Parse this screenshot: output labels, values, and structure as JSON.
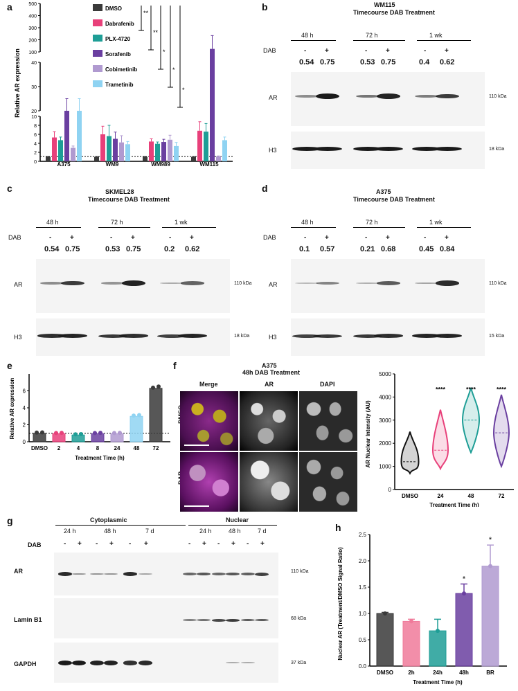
{
  "labels": {
    "a": "a",
    "b": "b",
    "c": "c",
    "d": "d",
    "e": "e",
    "f": "f",
    "g": "g",
    "h": "h"
  },
  "common": {
    "dab": "DAB",
    "minus": "-",
    "plus": "+",
    "ar": "AR",
    "h3": "H3",
    "kda110": "110 kDa",
    "kda18": "18 kDa",
    "kda15": "15 kDa",
    "kda68": "68 kDa",
    "kda37": "37 kDa",
    "t48": "48 h",
    "t72": "72 h",
    "t1wk": "1 wk",
    "t24": "24 h",
    "t7d": "7 d"
  },
  "panel_a": {
    "ylabel": "Relative AR expression",
    "yticks_top": [
      "500",
      "400",
      "300",
      "200",
      "100"
    ],
    "yticks_mid": [
      "40",
      "30",
      "20"
    ],
    "yticks_low": [
      "10",
      "8",
      "6",
      "4",
      "2",
      "0"
    ],
    "legend": [
      "DMSO",
      "Dabrafenib",
      "PLX-4720",
      "Sorafenib",
      "Cobimetinib",
      "Trametinib"
    ],
    "sig": [
      "**",
      "**",
      "*",
      "*",
      "*"
    ]
  },
  "panel_b": {
    "title1": "WM115",
    "title2": "Timecourse DAB Treatment",
    "ratios": [
      "0.54",
      "0.75",
      "0.53",
      "0.75",
      "0.4",
      "0.62"
    ]
  },
  "panel_c": {
    "title1": "SKMEL28",
    "title2": "Timecourse DAB Treatment",
    "ratios": [
      "0.54",
      "0.75",
      "0.53",
      "0.75",
      "0.2",
      "0.62"
    ]
  },
  "panel_d": {
    "title1": "A375",
    "title2": "Timecourse DAB Treatment",
    "ratios": [
      "0.1",
      "0.57",
      "0.21",
      "0.68",
      "0.45",
      "0.84"
    ]
  },
  "panel_f": {
    "title1": "A375",
    "title2": "48h DAB Treatment",
    "cols": [
      "Merge",
      "AR",
      "DAPI"
    ],
    "rows": [
      "DMSO",
      "DAB"
    ],
    "stars": [
      "****",
      "****",
      "****"
    ]
  },
  "panel_g": {
    "cyto": "Cytoplasmic",
    "nuc": "Nuclear",
    "lamin": "Lamin B1",
    "gapdh": "GAPDH"
  },
  "chart_data": [
    {
      "type": "bar",
      "id": "a",
      "ylabel": "Relative AR expression",
      "categories": [
        "A375",
        "WM9",
        "WM989",
        "WM115"
      ],
      "series": [
        {
          "name": "DMSO",
          "color": "#3a3a3a",
          "values": [
            1,
            1,
            1,
            1
          ],
          "err": [
            0.1,
            0.1,
            0.1,
            0.1
          ]
        },
        {
          "name": "Dabrafenib",
          "color": "#e8407a",
          "values": [
            5.3,
            6,
            4.4,
            6.8
          ],
          "err": [
            1.3,
            1.8,
            0.6,
            2
          ]
        },
        {
          "name": "PLX-4720",
          "color": "#1e9e96",
          "values": [
            4.7,
            5.6,
            3.9,
            6.6
          ],
          "err": [
            0.7,
            2.4,
            0.4,
            1.8
          ]
        },
        {
          "name": "Sorafenib",
          "color": "#6a3fa0",
          "values": [
            20,
            5,
            4.3,
            125
          ],
          "err": [
            5,
            1.5,
            0.6,
            110
          ]
        },
        {
          "name": "Cobimetinib",
          "color": "#b09ad0",
          "values": [
            3,
            4.2,
            4.8,
            1.1
          ],
          "err": [
            0.4,
            1.5,
            1,
            0.1
          ]
        },
        {
          "name": "Trametinib",
          "color": "#8fd3f2",
          "values": [
            20,
            3.8,
            3.4,
            4.7
          ],
          "err": [
            5,
            0.6,
            0.8,
            0.7
          ]
        }
      ]
    },
    {
      "type": "bar",
      "id": "e",
      "ylabel": "Relative AR expression",
      "xlabel": "Treatment Time (h)",
      "categories": [
        "DMSO",
        "2",
        "4",
        "8",
        "24",
        "48",
        "72"
      ],
      "values": [
        1,
        0.95,
        0.8,
        0.95,
        0.95,
        3,
        6.3
      ],
      "colors": [
        "#3a3a3a",
        "#e8407a",
        "#1e9e96",
        "#6a3fa0",
        "#b09ad0",
        "#8fd3f2",
        "#3a3a3a"
      ],
      "yticks": [
        "0",
        "2",
        "4",
        "6"
      ],
      "ylim": [
        0,
        8
      ]
    },
    {
      "type": "violin",
      "id": "f",
      "ylabel": "AR Nuclear Intensity (AU)",
      "xlabel": "Treatment Time (h)",
      "categories": [
        "DMSO",
        "24",
        "48",
        "72"
      ],
      "medians": [
        1200,
        1700,
        3000,
        2450
      ],
      "colors": [
        "#111111",
        "#e8407a",
        "#1e9e96",
        "#6a3fa0"
      ],
      "yticks": [
        "0",
        "1000",
        "2000",
        "3000",
        "4000",
        "5000"
      ],
      "ylim": [
        0,
        5000
      ]
    },
    {
      "type": "bar",
      "id": "h",
      "ylabel": "Nuclear AR (Treatment/DMSO Signal Ratio)",
      "xlabel": "Treatment Time (h)",
      "categories": [
        "DMSO",
        "2h",
        "24h",
        "48h",
        "BR"
      ],
      "values": [
        1,
        0.85,
        0.67,
        1.38,
        1.9
      ],
      "err": [
        0.02,
        0.04,
        0.22,
        0.18,
        0.4
      ],
      "colors": [
        "#3a3a3a",
        "#f07a9a",
        "#1e9e96",
        "#6a3fa0",
        "#b09ad0"
      ],
      "stars": [
        "",
        "",
        "",
        "*",
        "*"
      ],
      "yticks": [
        "0.0",
        "0.5",
        "1.0",
        "1.5",
        "2.0",
        "2.5"
      ],
      "ylim": [
        0,
        2.5
      ]
    }
  ]
}
